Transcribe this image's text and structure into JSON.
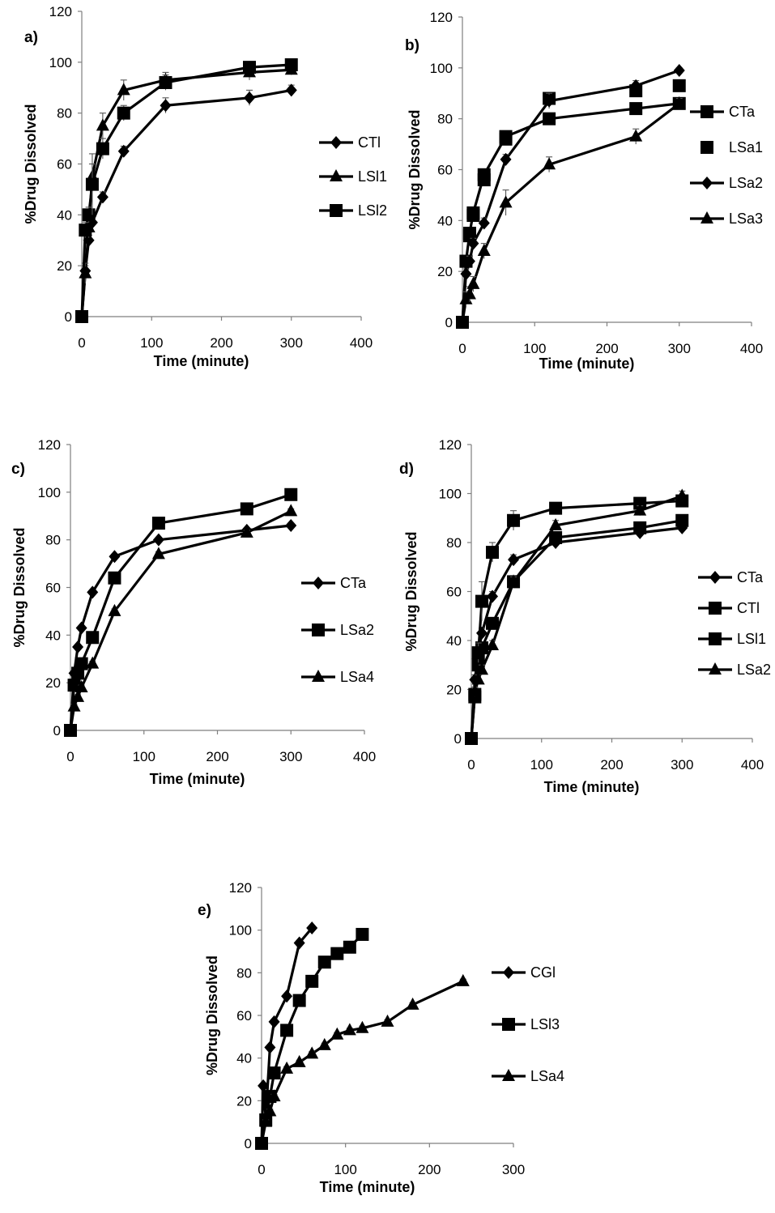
{
  "chart_data": [
    {
      "type": "line",
      "panel_label": "a)",
      "xlabel": "Time (minute)",
      "ylabel": "%Drug Dissolved",
      "xlim": [
        0,
        400
      ],
      "ylim": [
        0,
        120
      ],
      "xticks": [
        "0",
        "100",
        "200",
        "300",
        "400"
      ],
      "yticks": [
        "0",
        "20",
        "40",
        "60",
        "80",
        "100",
        "120"
      ],
      "legend_position": "right",
      "series": [
        {
          "name": "CTl",
          "marker": "diamond",
          "x": [
            0,
            5,
            10,
            15,
            30,
            60,
            120,
            240,
            300
          ],
          "y": [
            0,
            18,
            30,
            37,
            47,
            65,
            83,
            86,
            89
          ],
          "err": [
            0,
            2,
            2,
            2,
            2,
            2,
            3,
            3,
            2
          ]
        },
        {
          "name": "LSl1",
          "marker": "triangle",
          "x": [
            0,
            5,
            10,
            15,
            30,
            60,
            120,
            240,
            300
          ],
          "y": [
            0,
            17,
            35,
            55,
            75,
            89,
            93,
            96,
            97
          ],
          "err": [
            0,
            4,
            4,
            5,
            5,
            4,
            3,
            3,
            2
          ]
        },
        {
          "name": "LSl2",
          "marker": "square",
          "x": [
            0,
            5,
            10,
            15,
            30,
            60,
            120,
            240,
            300
          ],
          "y": [
            0,
            34,
            40,
            52,
            66,
            80,
            92,
            98,
            99
          ],
          "err": [
            0,
            3,
            3,
            12,
            4,
            3,
            3,
            2,
            2
          ]
        }
      ]
    },
    {
      "type": "line",
      "panel_label": "b)",
      "xlabel": "Time (minute)",
      "ylabel": "%Drug Dissolved",
      "xlim": [
        0,
        400
      ],
      "ylim": [
        0,
        120
      ],
      "xticks": [
        "0",
        "100",
        "200",
        "300",
        "400"
      ],
      "yticks": [
        "0",
        "20",
        "40",
        "60",
        "80",
        "100",
        "120"
      ],
      "legend_position": "right",
      "series": [
        {
          "name": "CTa",
          "marker": "square",
          "line": true,
          "x": [
            0,
            5,
            10,
            15,
            30,
            60,
            120,
            240,
            300
          ],
          "y": [
            0,
            24,
            35,
            43,
            58,
            73,
            80,
            84,
            86
          ],
          "err": [
            0,
            2,
            2,
            2,
            2,
            2,
            2,
            2,
            2
          ]
        },
        {
          "name": "LSa1",
          "marker": "square",
          "line": false,
          "x": [
            0,
            5,
            10,
            15,
            30,
            60,
            120,
            240,
            300
          ],
          "y": [
            0,
            24,
            34,
            42,
            56,
            72,
            88,
            91,
            93
          ],
          "err": [
            0,
            2,
            2,
            2,
            2,
            2,
            2,
            2,
            2
          ]
        },
        {
          "name": "LSa2",
          "marker": "diamond",
          "line": true,
          "x": [
            0,
            5,
            10,
            15,
            30,
            60,
            120,
            240,
            300
          ],
          "y": [
            0,
            19,
            24,
            31,
            39,
            64,
            87,
            93,
            99
          ],
          "err": [
            0,
            2,
            2,
            2,
            2,
            2,
            3,
            2,
            1
          ]
        },
        {
          "name": "LSa3",
          "marker": "triangle",
          "line": true,
          "x": [
            0,
            5,
            10,
            15,
            30,
            60,
            120,
            240,
            300
          ],
          "y": [
            0,
            9,
            11,
            15,
            28,
            47,
            62,
            73,
            86
          ],
          "err": [
            0,
            3,
            3,
            3,
            3,
            5,
            3,
            3,
            2
          ]
        }
      ]
    },
    {
      "type": "line",
      "panel_label": "c)",
      "xlabel": "Time (minute)",
      "ylabel": "%Drug Dissolved",
      "xlim": [
        0,
        400
      ],
      "ylim": [
        0,
        120
      ],
      "xticks": [
        "0",
        "100",
        "200",
        "300",
        "400"
      ],
      "yticks": [
        "0",
        "20",
        "40",
        "60",
        "80",
        "100",
        "120"
      ],
      "legend_position": "right",
      "series": [
        {
          "name": "CTa",
          "marker": "diamond",
          "x": [
            0,
            5,
            10,
            15,
            30,
            60,
            120,
            240,
            300
          ],
          "y": [
            0,
            24,
            35,
            43,
            58,
            73,
            80,
            84,
            86
          ],
          "err": [
            0,
            1,
            1,
            1,
            1,
            1,
            1,
            1,
            1
          ]
        },
        {
          "name": "LSa2",
          "marker": "square",
          "x": [
            0,
            5,
            10,
            15,
            30,
            60,
            120,
            240,
            300
          ],
          "y": [
            0,
            19,
            24,
            28,
            39,
            64,
            87,
            93,
            99
          ],
          "err": [
            0,
            1,
            1,
            1,
            1,
            1,
            1,
            1,
            1
          ]
        },
        {
          "name": "LSa4",
          "marker": "triangle",
          "x": [
            0,
            5,
            10,
            15,
            30,
            60,
            120,
            240,
            300
          ],
          "y": [
            0,
            10,
            14,
            18,
            28,
            50,
            74,
            83,
            92
          ],
          "err": [
            0,
            1,
            1,
            1,
            1,
            1,
            1,
            1,
            1
          ]
        }
      ]
    },
    {
      "type": "line",
      "panel_label": "d)",
      "xlabel": "Time (minute)",
      "ylabel": "%Drug Dissolved",
      "xlim": [
        0,
        400
      ],
      "ylim": [
        0,
        120
      ],
      "xticks": [
        "0",
        "100",
        "200",
        "300",
        "400"
      ],
      "yticks": [
        "0",
        "20",
        "40",
        "60",
        "80",
        "100",
        "120"
      ],
      "legend_position": "right",
      "series": [
        {
          "name": "CTa",
          "marker": "diamond",
          "x": [
            0,
            5,
            10,
            15,
            30,
            60,
            120,
            240,
            300
          ],
          "y": [
            0,
            24,
            35,
            43,
            58,
            73,
            80,
            84,
            86
          ],
          "err": [
            0,
            2,
            2,
            2,
            2,
            2,
            2,
            2,
            2
          ]
        },
        {
          "name": "CTl",
          "marker": "square",
          "x": [
            0,
            5,
            10,
            15,
            30,
            60,
            120,
            240,
            300
          ],
          "y": [
            0,
            18,
            30,
            37,
            47,
            64,
            82,
            86,
            89
          ],
          "err": [
            0,
            2,
            2,
            2,
            2,
            2,
            2,
            2,
            2
          ]
        },
        {
          "name": "LSl1",
          "marker": "square",
          "x": [
            0,
            5,
            10,
            15,
            30,
            60,
            120,
            240,
            300
          ],
          "y": [
            0,
            17,
            35,
            56,
            76,
            89,
            94,
            96,
            97
          ],
          "err": [
            0,
            4,
            4,
            8,
            4,
            4,
            2,
            2,
            2
          ]
        },
        {
          "name": "LSa2",
          "marker": "triangle",
          "x": [
            0,
            5,
            10,
            15,
            30,
            60,
            120,
            240,
            300
          ],
          "y": [
            0,
            19,
            24,
            28,
            38,
            64,
            87,
            93,
            99
          ],
          "err": [
            0,
            2,
            2,
            2,
            2,
            2,
            2,
            2,
            2
          ]
        }
      ]
    },
    {
      "type": "line",
      "panel_label": "e)",
      "xlabel": "Time (minute)",
      "ylabel": "%Drug Dissolved",
      "xlim": [
        0,
        300
      ],
      "ylim": [
        0,
        120
      ],
      "xticks": [
        "0",
        "100",
        "200",
        "300"
      ],
      "yticks": [
        "0",
        "20",
        "40",
        "60",
        "80",
        "100",
        "120"
      ],
      "legend_position": "right",
      "series": [
        {
          "name": "CGl",
          "marker": "diamond",
          "x": [
            0,
            2,
            5,
            10,
            15,
            30,
            45,
            60
          ],
          "y": [
            0,
            27,
            12,
            45,
            57,
            69,
            94,
            101
          ],
          "err": [
            0,
            1,
            1,
            1,
            1,
            1,
            1,
            1
          ]
        },
        {
          "name": "LSl3",
          "marker": "square",
          "x": [
            0,
            5,
            10,
            15,
            30,
            45,
            60,
            75,
            90,
            105,
            120
          ],
          "y": [
            0,
            11,
            22,
            33,
            53,
            67,
            76,
            85,
            89,
            92,
            98
          ],
          "err": [
            0,
            1,
            1,
            1,
            1,
            1,
            1,
            1,
            1,
            1,
            1
          ]
        },
        {
          "name": "LSa4",
          "marker": "triangle",
          "x": [
            0,
            5,
            10,
            15,
            30,
            45,
            60,
            75,
            90,
            105,
            120,
            150,
            180,
            240
          ],
          "y": [
            0,
            10,
            15,
            22,
            35,
            38,
            42,
            46,
            51,
            53,
            54,
            57,
            65,
            76
          ],
          "err": [
            0,
            1,
            1,
            1,
            1,
            1,
            1,
            1,
            1,
            1,
            1,
            1,
            1,
            1
          ]
        }
      ]
    }
  ]
}
